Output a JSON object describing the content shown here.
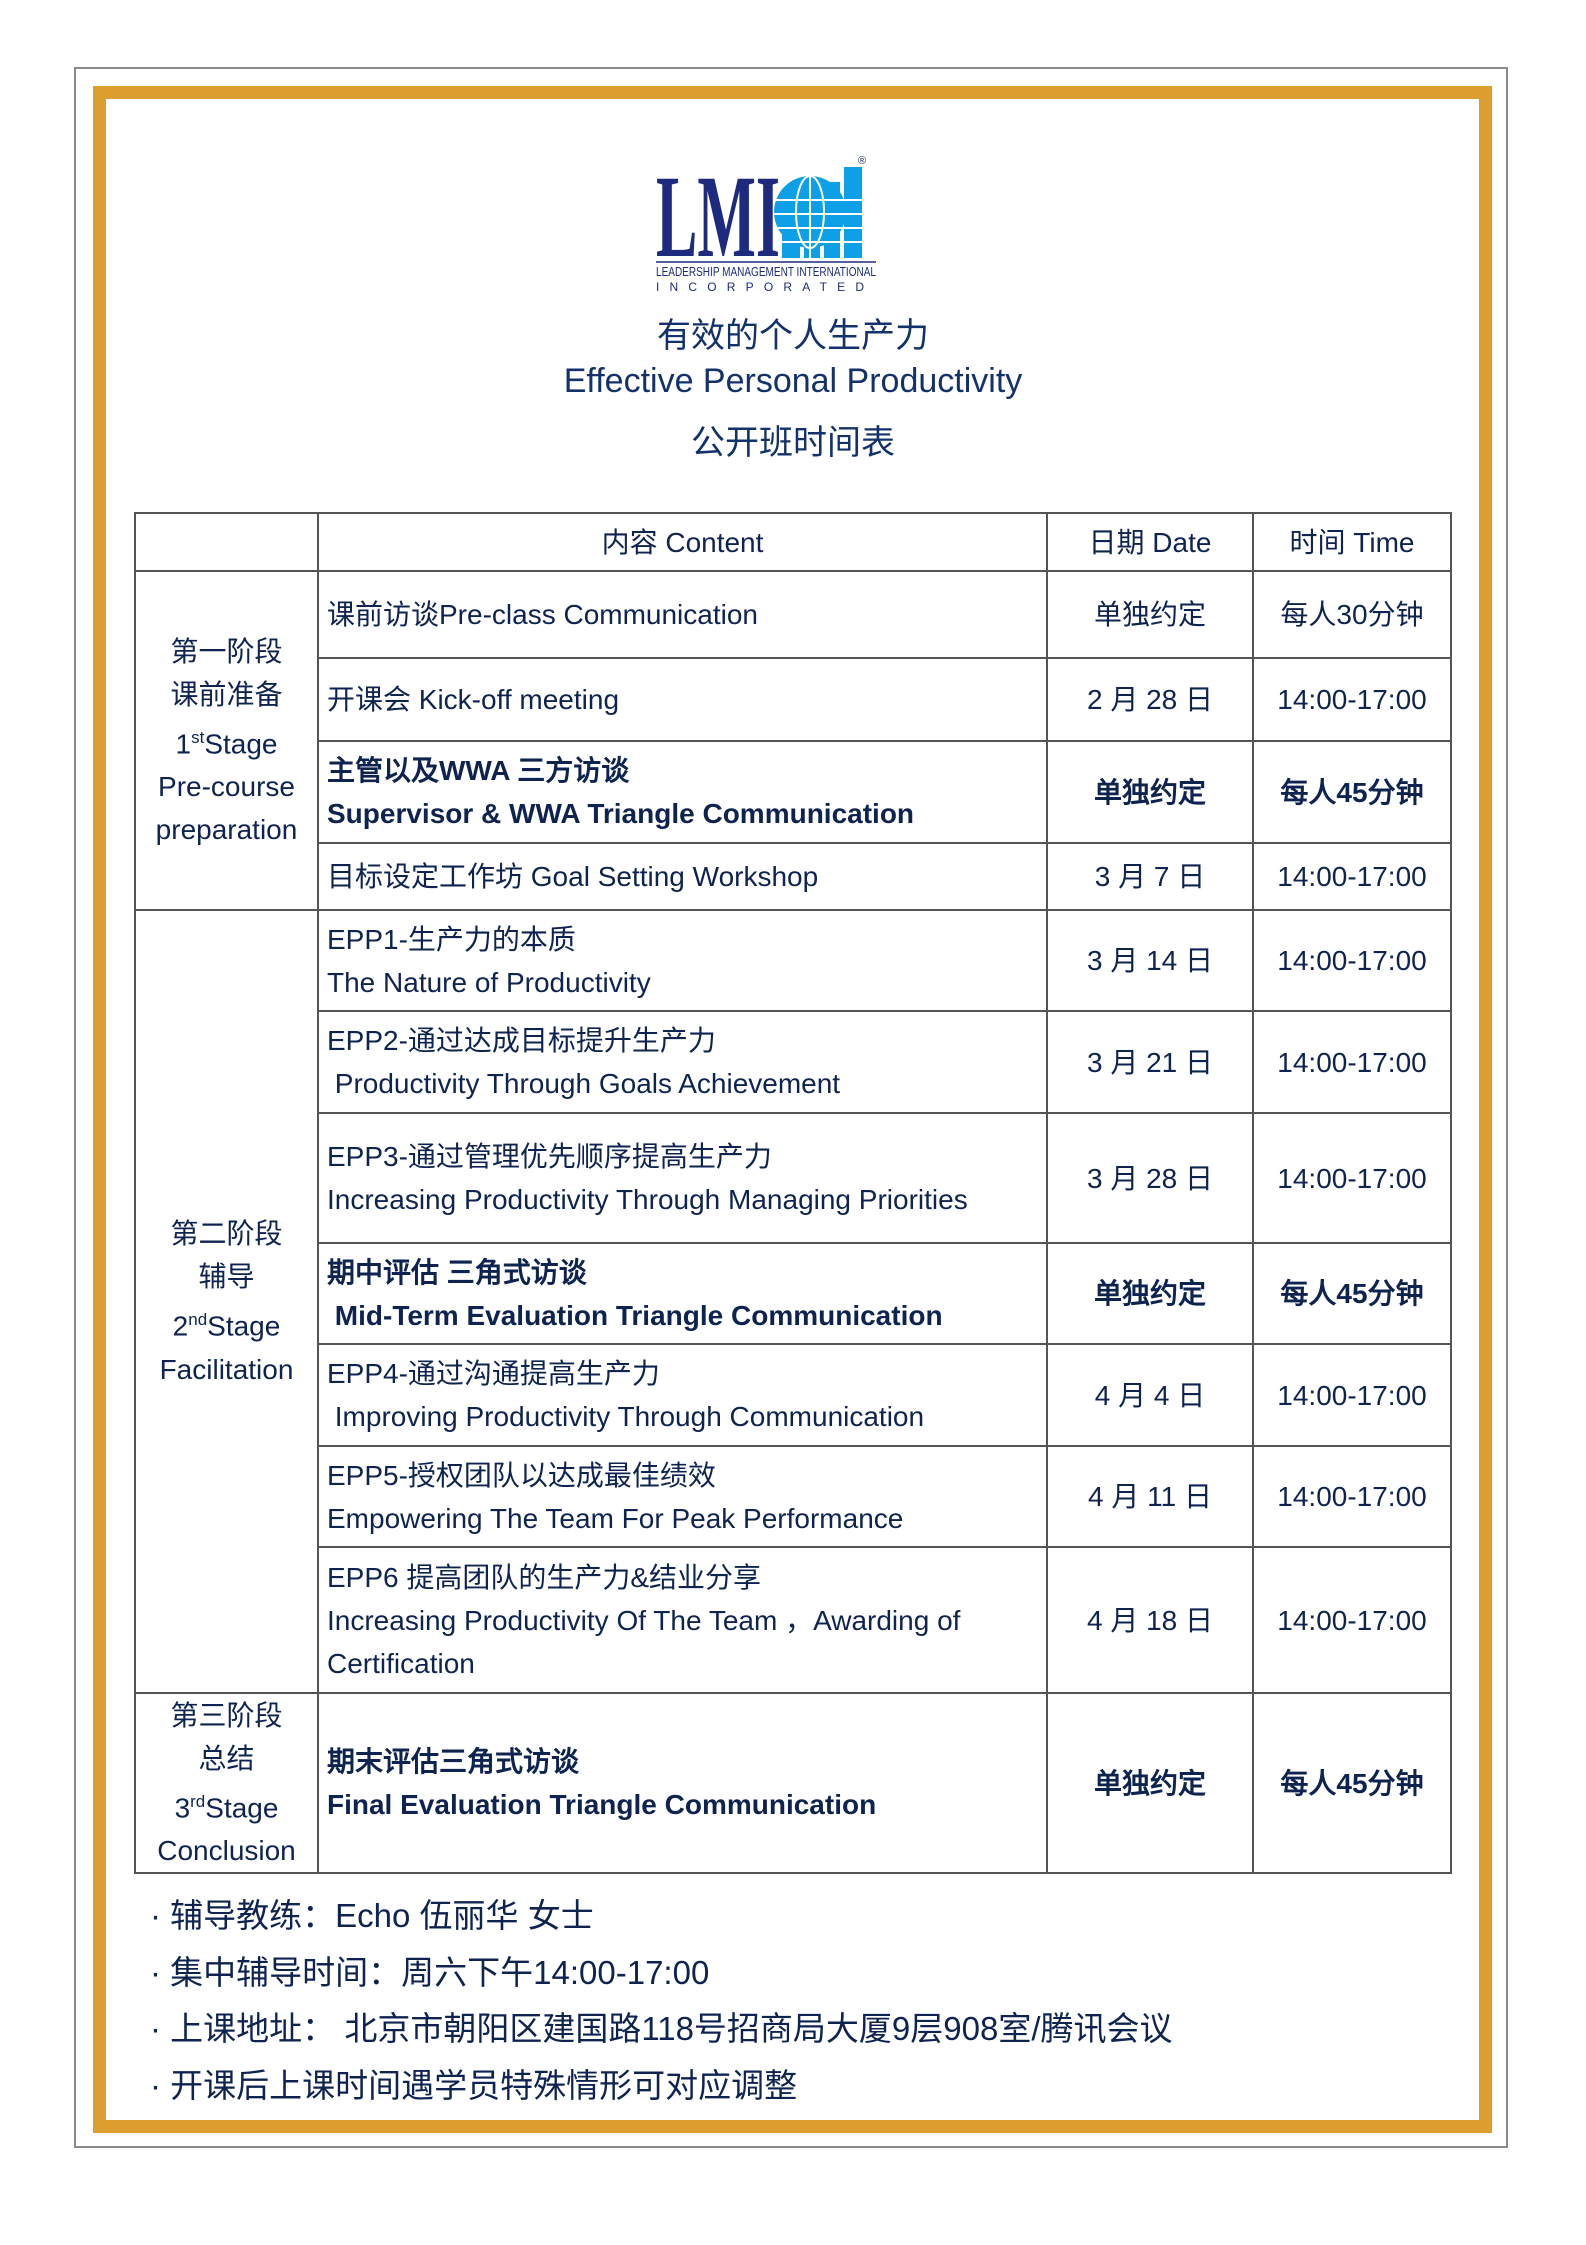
{
  "logo": {
    "mark": "LMI",
    "line1": "LEADERSHIP MANAGEMENT INTERNATIONAL",
    "line2": "INCORPORATED",
    "registered": "®",
    "colors": {
      "navy": "#1e2a7e",
      "blue": "#0da0e6"
    }
  },
  "title": {
    "cn": "有效的个人生产力",
    "en": "Effective Personal Productivity",
    "sub": "公开班时间表"
  },
  "table": {
    "headers": {
      "stage": "",
      "content": "内容 Content",
      "date": "日期 Date",
      "time": "时间 Time"
    },
    "stages": [
      {
        "cn1": "第一阶段",
        "cn2": "课前准备",
        "num": "1",
        "sup": "st",
        "word": "Stage",
        "en": "Pre-course preparation"
      },
      {
        "cn1": "第二阶段",
        "cn2": "辅导",
        "num": "2",
        "sup": "nd",
        "word": "Stage",
        "en": "Facilitation"
      },
      {
        "cn1": "第三阶段",
        "cn2": "总结",
        "num": "3",
        "sup": "rd",
        "word": "Stage",
        "en": "Conclusion"
      }
    ],
    "rows": [
      {
        "line1": "课前访谈Pre-class Communication",
        "line2": "",
        "date": "单独约定",
        "time": "每人30分钟"
      },
      {
        "line1": "开课会 Kick-off meeting",
        "line2": "",
        "date": "2 月 28 日",
        "time": "14:00-17:00"
      },
      {
        "line1": "主管以及WWA 三方访谈",
        "line2": "Supervisor & WWA Triangle Communication",
        "date": "单独约定",
        "time": "每人45分钟",
        "bold": true
      },
      {
        "line1": "目标设定工作坊 Goal Setting Workshop",
        "line2": "",
        "date": "3 月 7 日",
        "time": "14:00-17:00"
      },
      {
        "line1": "EPP1-生产力的本质",
        "line2": "The Nature of Productivity",
        "date": "3 月 14 日",
        "time": "14:00-17:00"
      },
      {
        "line1": "EPP2-通过达成目标提升生产力",
        "line2": " Productivity Through Goals Achievement",
        "date": "3 月 21 日",
        "time": "14:00-17:00"
      },
      {
        "line1": "EPP3-通过管理优先顺序提高生产力",
        "line2": "Increasing Productivity Through Managing Priorities",
        "date": "3 月 28 日",
        "time": "14:00-17:00"
      },
      {
        "line1": "期中评估 三角式访谈",
        "line2": " Mid-Term Evaluation Triangle Communication",
        "date": "单独约定",
        "time": "每人45分钟",
        "bold": true
      },
      {
        "line1": "EPP4-通过沟通提高生产力",
        "line2": " Improving Productivity Through Communication",
        "date": "4 月 4 日",
        "time": "14:00-17:00"
      },
      {
        "line1": "EPP5-授权团队以达成最佳绩效",
        "line2": "Empowering The Team For Peak Performance",
        "date": "4 月 11 日",
        "time": "14:00-17:00"
      },
      {
        "line1": "EPP6 提高团队的生产力&结业分享",
        "line2": "Increasing Productivity Of The Team ，Awarding of Certification",
        "date": "4 月 18 日",
        "time": "14:00-17:00"
      },
      {
        "line1": "期末评估三角式访谈",
        "line2": "Final Evaluation Triangle Communication",
        "date": "单独约定",
        "time": "每人45分钟",
        "bold": true
      }
    ]
  },
  "notes": [
    "· 辅导教练：Echo 伍丽华 女士",
    "· 集中辅导时间：周六下午14:00-17:00",
    "· 上课地址： 北京市朝阳区建国路118号招商局大厦9层908室/腾讯会议",
    "· 开课后上课时间遇学员特殊情形可对应调整"
  ],
  "colors": {
    "border_gold": "#dc9f2f",
    "text": "#0f2350"
  }
}
